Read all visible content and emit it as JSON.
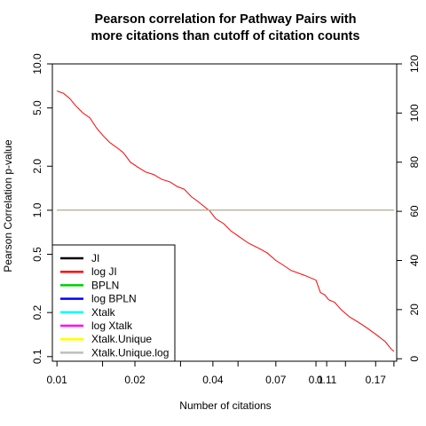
{
  "chart_data": {
    "type": "line",
    "title": [
      "Pearson correlation for Pathway Pairs with",
      "more citations than cutoff of citation counts"
    ],
    "xlabel": "Number of citations",
    "ylabel": "Pearson Correlation p-value",
    "x_scale": "log",
    "y_scale": "log",
    "x_ticks": [
      0.01,
      0.02,
      0.04,
      0.07,
      0.1,
      0.11,
      0.17
    ],
    "x_tick_labels": [
      "0.01",
      "0.02",
      "0.04",
      "0.07",
      "0.1",
      "0.11",
      "0.17"
    ],
    "x_minor_ticks": [
      0.015,
      0.03,
      0.05,
      0.13,
      0.2
    ],
    "xlim": [
      0.0096,
      0.205
    ],
    "y_ticks": [
      0.1,
      0.2,
      0.5,
      1.0,
      2.0,
      5.0,
      10.0
    ],
    "y_tick_labels": [
      "0.1",
      "0.2",
      "0.5",
      "1.0",
      "2.0",
      "5.0",
      "10.0"
    ],
    "ylim": [
      0.093,
      10.0
    ],
    "y2_ticks": [
      0,
      20,
      40,
      60,
      80,
      100,
      120
    ],
    "y2_tick_labels": [
      "0",
      "20",
      "40",
      "60",
      "80",
      "100",
      "120"
    ],
    "y2lim": [
      -1,
      120
    ],
    "legend_position": "bottom-left",
    "series": [
      {
        "name": "JI",
        "color": "#000000",
        "axis": "left",
        "x": [
          0.01,
          0.2
        ],
        "y": [
          1.0,
          1.0
        ]
      },
      {
        "name": "log JI",
        "color": "#ff0000",
        "axis": "right",
        "x": [
          0.01,
          0.0106,
          0.0112,
          0.0118,
          0.0126,
          0.0134,
          0.0142,
          0.015,
          0.016,
          0.017,
          0.018,
          0.0192,
          0.0205,
          0.022,
          0.0236,
          0.0254,
          0.0273,
          0.0292,
          0.031,
          0.033,
          0.035,
          0.037,
          0.039,
          0.041,
          0.044,
          0.047,
          0.05,
          0.055,
          0.06,
          0.065,
          0.07,
          0.075,
          0.08,
          0.09,
          0.1,
          0.104,
          0.108,
          0.112,
          0.118,
          0.125,
          0.135,
          0.145,
          0.155,
          0.165,
          0.175,
          0.185,
          0.195,
          0.2
        ],
        "y": [
          109,
          108,
          106,
          103,
          100,
          98,
          94,
          91,
          88,
          86,
          84,
          80,
          78,
          76,
          75,
          73,
          72,
          70,
          69,
          66,
          64,
          62,
          60,
          57,
          55,
          52,
          50,
          47,
          45,
          43,
          40,
          38,
          36,
          34,
          32,
          27,
          26,
          24,
          23,
          20,
          17,
          15,
          13,
          11,
          9,
          7,
          4,
          3
        ]
      },
      {
        "name": "BPLN",
        "color": "#00cd00",
        "axis": "left",
        "x": [
          0.01,
          0.2
        ],
        "y": [
          1.0,
          1.0
        ]
      },
      {
        "name": "log BPLN",
        "color": "#0000ff",
        "axis": "left",
        "x": [
          0.01,
          0.2
        ],
        "y": [
          1.0,
          1.0
        ]
      },
      {
        "name": "Xtalk",
        "color": "#00ffff",
        "axis": "left",
        "x": [
          0.01,
          0.2
        ],
        "y": [
          1.0,
          1.0
        ]
      },
      {
        "name": "log Xtalk",
        "color": "#ff00ff",
        "axis": "left",
        "x": [
          0.01,
          0.2
        ],
        "y": [
          1.0,
          1.0
        ]
      },
      {
        "name": "Xtalk.Unique",
        "color": "#ffff00",
        "axis": "left",
        "x": [
          0.01,
          0.2
        ],
        "y": [
          1.0,
          1.0
        ]
      },
      {
        "name": "Xtalk.Unique.log",
        "color": "#bebebe",
        "axis": "left",
        "x": [
          0.01,
          0.2
        ],
        "y": [
          1.0,
          1.0
        ]
      }
    ]
  }
}
